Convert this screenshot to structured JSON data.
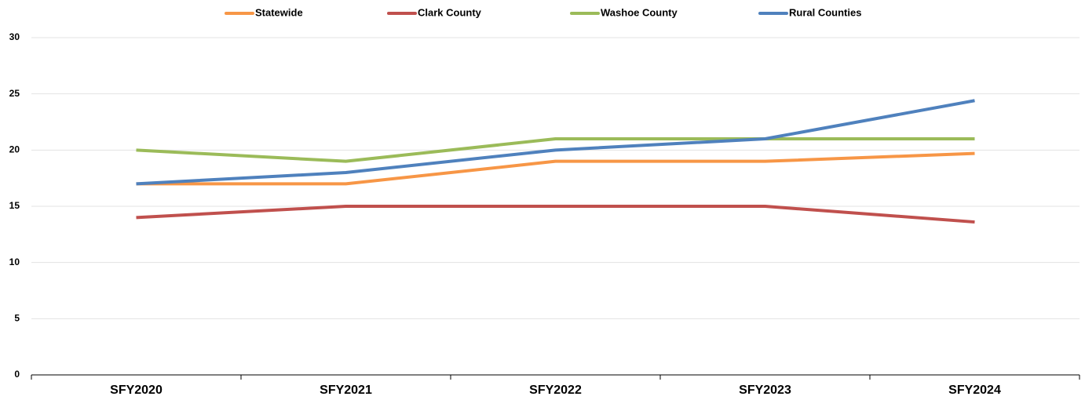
{
  "chart_data": {
    "type": "line",
    "categories": [
      "SFY2020",
      "SFY2021",
      "SFY2022",
      "SFY2023",
      "SFY2024"
    ],
    "series": [
      {
        "name": "Statewide",
        "color": "#f79646",
        "values": [
          17,
          17,
          19,
          19,
          19.7
        ]
      },
      {
        "name": "Clark County",
        "color": "#c0504d",
        "values": [
          14,
          15,
          15,
          15,
          13.6
        ]
      },
      {
        "name": "Washoe County",
        "color": "#9bbb59",
        "values": [
          20,
          19,
          21,
          21,
          21
        ]
      },
      {
        "name": "Rural Counties",
        "color": "#4f81bd",
        "values": [
          17,
          18,
          20,
          21,
          24.4
        ]
      }
    ],
    "ylim": [
      0,
      30
    ],
    "yticks": [
      0,
      5,
      10,
      15,
      20,
      25,
      30
    ],
    "grid": true,
    "legend": "top"
  }
}
